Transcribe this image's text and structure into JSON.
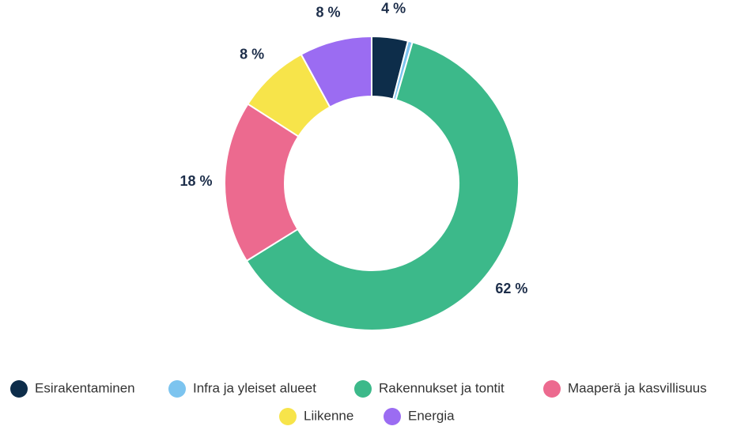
{
  "chart_data": {
    "type": "donut",
    "categories": [
      "Esirakentaminen",
      "Infra ja yleiset alueet",
      "Rakennukset ja tontit",
      "Maaperä ja kasvillisuus",
      "Liikenne",
      "Energia"
    ],
    "values": [
      4,
      0.5,
      62,
      18,
      8,
      8
    ],
    "value_labels": [
      "4 %",
      null,
      "62 %",
      "18 %",
      "8 %",
      "8 %"
    ],
    "colors": [
      "#0d2d4a",
      "#7cc4ef",
      "#3cb98a",
      "#ec6a8f",
      "#f7e44a",
      "#9b6cf2"
    ],
    "legend": "bottom"
  }
}
